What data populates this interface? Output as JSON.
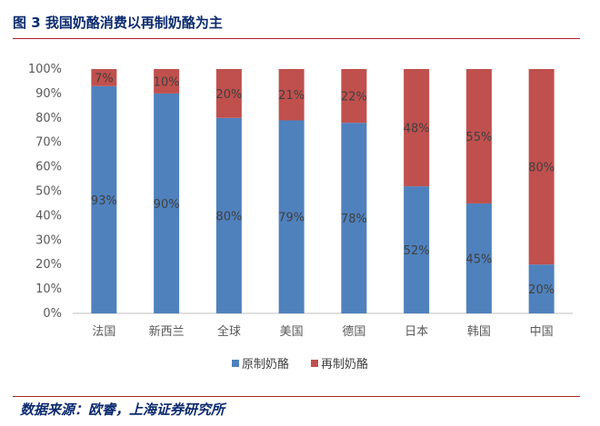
{
  "figure": {
    "title": "图 3  我国奶酪消费以再制奶酪为主",
    "source": "数据来源：欧睿，上海证券研究所"
  },
  "colors": {
    "accent_rule": "#b0232b",
    "title_text": "#0b2a6f",
    "series_original": "#4f81bd",
    "series_processed": "#c0504d"
  },
  "chart_data": {
    "type": "bar",
    "stacked": true,
    "percent": true,
    "categories": [
      "法国",
      "新西兰",
      "全球",
      "美国",
      "德国",
      "日本",
      "韩国",
      "中国"
    ],
    "series": [
      {
        "name": "原制奶酪",
        "color": "#4f81bd",
        "values": [
          93,
          90,
          80,
          79,
          78,
          52,
          45,
          20
        ],
        "labels": [
          "93%",
          "90%",
          "80%",
          "79%",
          "78%",
          "52%",
          "45%",
          "20%"
        ]
      },
      {
        "name": "再制奶酪",
        "color": "#c0504d",
        "values": [
          7,
          10,
          20,
          21,
          22,
          48,
          55,
          80
        ],
        "labels": [
          "7%",
          "10%",
          "20%",
          "21%",
          "22%",
          "48%",
          "55%",
          "80%"
        ]
      }
    ],
    "yticks": [
      "0%",
      "10%",
      "20%",
      "30%",
      "40%",
      "50%",
      "60%",
      "70%",
      "80%",
      "90%",
      "100%"
    ],
    "ylim": [
      0,
      100
    ],
    "grid": false,
    "legend": "bottom"
  }
}
